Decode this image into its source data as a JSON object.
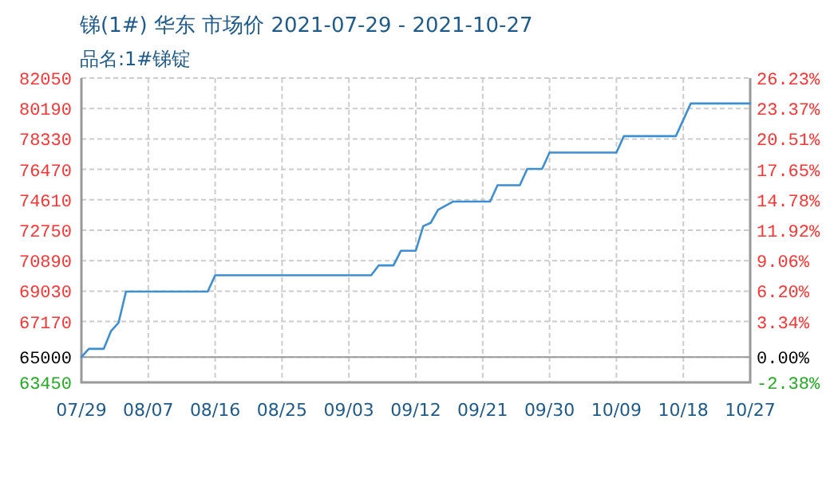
{
  "chart_data": {
    "type": "line",
    "title": "锑(1#) 华东 市场价 2021-07-29 - 2021-10-27",
    "subtitle": "品名:1#锑锭",
    "series": [
      {
        "color": "#3d8fd1",
        "x": [
          "--07-29",
          "--07-30",
          "--08-01",
          "--08-02",
          "--08-03",
          "--08-04",
          "--08-15",
          "--08-16",
          "--09-06",
          "--09-07",
          "--09-09",
          "--09-10",
          "--09-12",
          "--09-13",
          "--09-14",
          "--09-15",
          "--09-17",
          "--09-22",
          "--09-23",
          "--09-26",
          "--09-27",
          "--09-29",
          "--09-30",
          "--10-09",
          "--10-10",
          "--10-17",
          "--10-19",
          "--10-27"
        ],
        "values": [
          65000,
          65500,
          65500,
          66600,
          67100,
          69000,
          69000,
          70000,
          70000,
          70600,
          70600,
          71500,
          71500,
          73000,
          73200,
          74000,
          74500,
          74500,
          75500,
          75500,
          76500,
          76500,
          77500,
          77500,
          78500,
          78500,
          80500,
          80500
        ]
      }
    ],
    "xlim": [
      "--07-29",
      "--10-27"
    ],
    "xticks": [
      {
        "value": "--07-29",
        "label": "07/29"
      },
      {
        "value": "--08-07",
        "label": "08/07"
      },
      {
        "value": "--08-16",
        "label": "08/16"
      },
      {
        "value": "--08-25",
        "label": "08/25"
      },
      {
        "value": "--09-03",
        "label": "09/03"
      },
      {
        "value": "--09-12",
        "label": "09/12"
      },
      {
        "value": "--09-21",
        "label": "09/21"
      },
      {
        "value": "--09-30",
        "label": "09/30"
      },
      {
        "value": "--10-09",
        "label": "10/09"
      },
      {
        "value": "--10-18",
        "label": "10/18"
      },
      {
        "value": "--10-27",
        "label": "10/27"
      }
    ],
    "ylim": [
      63450,
      82050
    ],
    "yticks": [
      63450,
      65000,
      67170,
      69030,
      70890,
      72750,
      74610,
      76470,
      78330,
      80190,
      82050
    ],
    "y2lim": [
      -2.38,
      26.23
    ],
    "y2ticks": [
      {
        "value": -2.38,
        "label": "-2.38%"
      },
      {
        "value": 0,
        "label": "0.00%"
      },
      {
        "value": 3.34,
        "label": "3.34%"
      },
      {
        "value": 6.2,
        "label": "6.20%"
      },
      {
        "value": 9.06,
        "label": "9.06%"
      },
      {
        "value": 11.92,
        "label": "11.92%"
      },
      {
        "value": 14.78,
        "label": "14.78%"
      },
      {
        "value": 17.65,
        "label": "17.65%"
      },
      {
        "value": 20.51,
        "label": "20.51%"
      },
      {
        "value": 23.37,
        "label": "23.37%"
      },
      {
        "value": 26.23,
        "label": "26.23%"
      }
    ],
    "ref_lines": [
      {
        "axis": "y",
        "value": 65000,
        "color": "#999999",
        "line_style": "solid"
      }
    ],
    "grid": true
  }
}
